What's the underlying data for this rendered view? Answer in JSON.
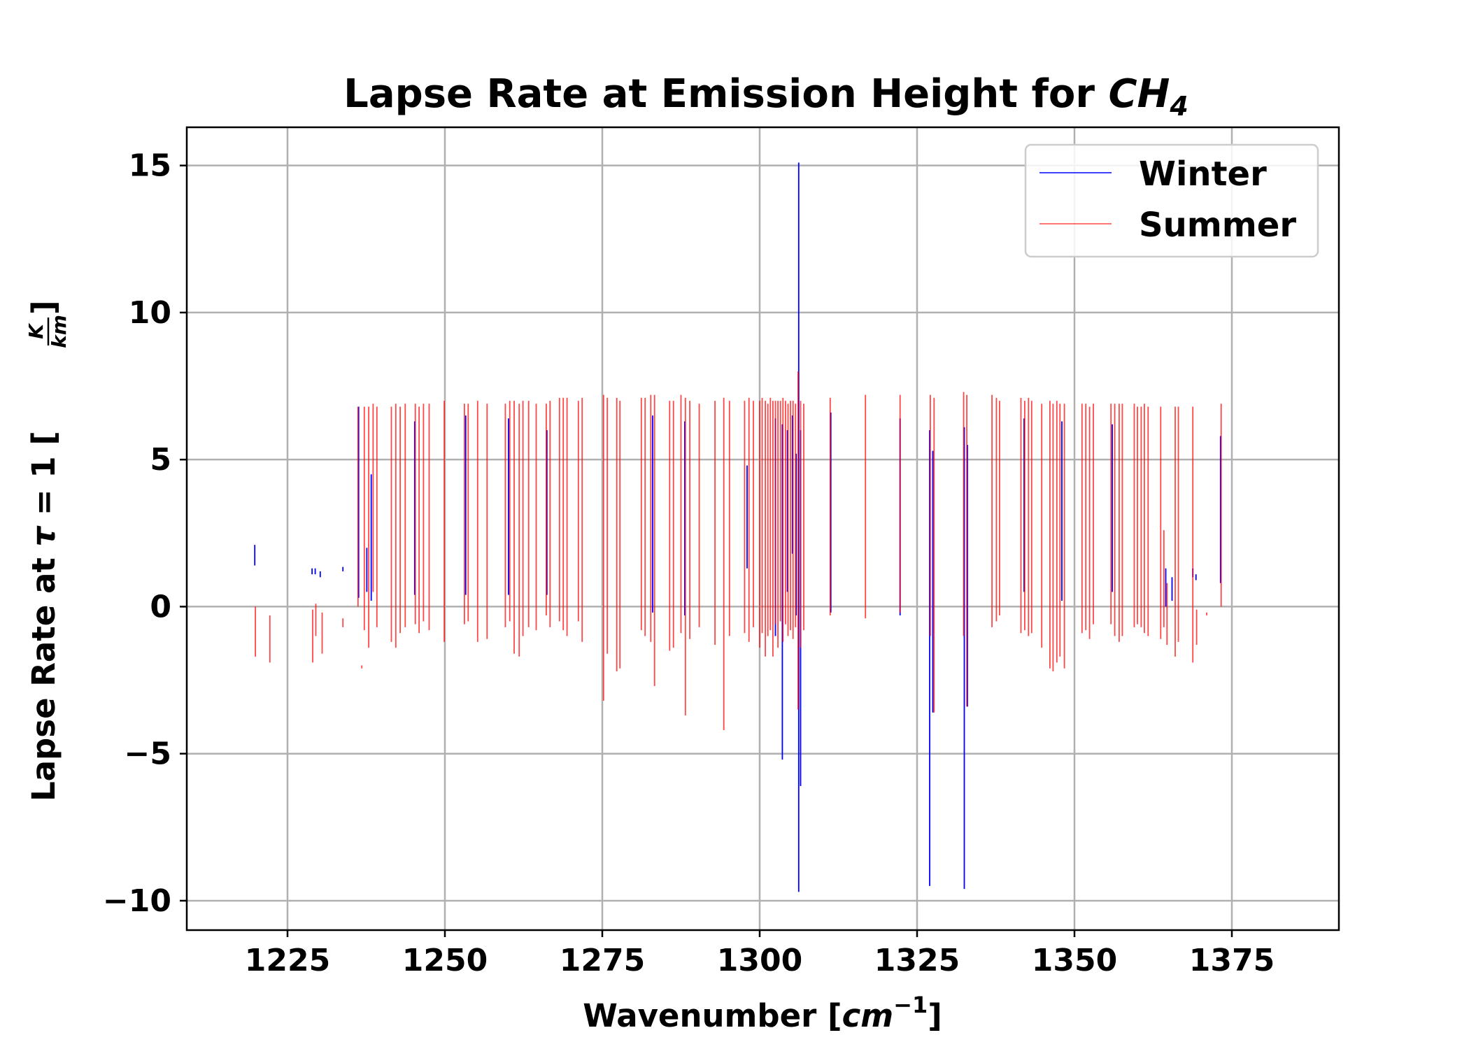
{
  "chart_data": {
    "type": "line",
    "title": "Lapse Rate at Emission Height for ",
    "title_species": "CH",
    "title_species_subscript": "4",
    "xlabel": "Wavenumber [",
    "xlabel_unit": "cm",
    "xlabel_exponent": "−1",
    "xlabel_close": "]",
    "ylabel": "Lapse Rate at ",
    "ylabel_symbol": "τ",
    "ylabel_eq": " = 1 [",
    "ylabel_unit_num": "K",
    "ylabel_unit_den": "km",
    "ylabel_close": "]",
    "xlim": [
      1209,
      1392
    ],
    "ylim": [
      -11,
      16.3
    ],
    "x_ticks": [
      1225,
      1250,
      1275,
      1300,
      1325,
      1350,
      1375
    ],
    "x_tick_labels": [
      "1225",
      "1250",
      "1275",
      "1300",
      "1325",
      "1350",
      "1375"
    ],
    "y_ticks": [
      -10,
      -5,
      0,
      5,
      10,
      15
    ],
    "y_tick_labels": [
      "−10",
      "−5",
      "0",
      "5",
      "10",
      "15"
    ],
    "grid": true,
    "legend_position": "upper right",
    "series": [
      {
        "name": "Winter",
        "color": "#0000ff",
        "segments": [
          [
            1219.8,
            1.4,
            2.1
          ],
          [
            1228.9,
            1.1,
            1.3
          ],
          [
            1229.4,
            1.1,
            1.3
          ],
          [
            1230.2,
            1.0,
            1.2
          ],
          [
            1233.8,
            1.2,
            1.35
          ],
          [
            1236.3,
            0.3,
            6.8
          ],
          [
            1237.6,
            0.5,
            2.0
          ],
          [
            1238.3,
            0.2,
            4.5
          ],
          [
            1245.2,
            0.4,
            6.3
          ],
          [
            1253.3,
            0.4,
            6.5
          ],
          [
            1260.1,
            0.4,
            6.4
          ],
          [
            1266.2,
            0.4,
            6.0
          ],
          [
            1283.0,
            -0.2,
            6.5
          ],
          [
            1288.1,
            -0.3,
            6.3
          ],
          [
            1298.0,
            1.3,
            4.8
          ],
          [
            1302.5,
            -1.0,
            6.4
          ],
          [
            1303.6,
            -5.2,
            6.2
          ],
          [
            1304.4,
            0.5,
            6.0
          ],
          [
            1305.2,
            1.8,
            6.5
          ],
          [
            1305.8,
            -0.3,
            5.2
          ],
          [
            1306.2,
            -9.7,
            15.1
          ],
          [
            1306.5,
            -6.1,
            6.0
          ],
          [
            1311.3,
            -0.2,
            6.6
          ],
          [
            1322.3,
            -0.3,
            6.4
          ],
          [
            1327.0,
            -9.5,
            6.0
          ],
          [
            1327.5,
            -3.6,
            5.3
          ],
          [
            1332.5,
            -9.6,
            6.1
          ],
          [
            1333.0,
            -3.4,
            5.5
          ],
          [
            1342.0,
            0.5,
            6.4
          ],
          [
            1348.0,
            0.2,
            6.3
          ],
          [
            1356.0,
            0.5,
            6.2
          ],
          [
            1364.5,
            0.0,
            1.3
          ],
          [
            1365.5,
            0.2,
            1.0
          ],
          [
            1368.8,
            1.0,
            1.3
          ],
          [
            1369.3,
            0.9,
            1.1
          ],
          [
            1373.2,
            0.8,
            5.8
          ]
        ]
      },
      {
        "name": "Summer",
        "color": "#ff0000",
        "segments": [
          [
            1219.9,
            -1.7,
            0.0
          ],
          [
            1222.2,
            -1.9,
            -0.3
          ],
          [
            1229.0,
            -1.9,
            -0.1
          ],
          [
            1229.5,
            -1.0,
            0.1
          ],
          [
            1230.5,
            -1.6,
            -0.2
          ],
          [
            1233.8,
            -0.7,
            -0.4
          ],
          [
            1236.8,
            -2.1,
            -2.0
          ],
          [
            1236.2,
            0.0,
            6.8
          ],
          [
            1237.2,
            -0.8,
            6.8
          ],
          [
            1237.9,
            -1.4,
            6.8
          ],
          [
            1238.6,
            0.5,
            6.9
          ],
          [
            1239.2,
            -0.7,
            6.8
          ],
          [
            1241.5,
            -1.2,
            6.8
          ],
          [
            1242.2,
            -1.4,
            6.9
          ],
          [
            1242.9,
            -0.9,
            6.8
          ],
          [
            1243.7,
            -0.7,
            6.9
          ],
          [
            1245.3,
            -0.6,
            6.9
          ],
          [
            1245.9,
            -0.9,
            6.8
          ],
          [
            1246.6,
            -0.5,
            6.9
          ],
          [
            1247.5,
            -0.8,
            6.9
          ],
          [
            1249.9,
            -1.2,
            7.0
          ],
          [
            1253.1,
            -0.6,
            6.9
          ],
          [
            1253.7,
            -0.5,
            6.9
          ],
          [
            1255.2,
            -1.2,
            7.0
          ],
          [
            1256.7,
            -1.1,
            6.9
          ],
          [
            1259.6,
            -0.7,
            6.9
          ],
          [
            1260.3,
            -0.5,
            7.0
          ],
          [
            1261.0,
            -1.6,
            7.0
          ],
          [
            1261.8,
            -1.7,
            6.9
          ],
          [
            1262.4,
            -1.0,
            7.0
          ],
          [
            1263.3,
            -0.7,
            7.0
          ],
          [
            1264.5,
            -0.8,
            6.9
          ],
          [
            1266.1,
            -0.3,
            6.9
          ],
          [
            1266.7,
            -0.7,
            7.0
          ],
          [
            1268.2,
            -0.5,
            7.1
          ],
          [
            1268.8,
            -0.8,
            7.1
          ],
          [
            1269.4,
            -1.0,
            7.1
          ],
          [
            1271.2,
            -0.5,
            7.0
          ],
          [
            1271.8,
            -1.2,
            7.1
          ],
          [
            1275.2,
            -3.2,
            7.2
          ],
          [
            1275.8,
            -1.6,
            7.1
          ],
          [
            1277.3,
            -2.2,
            7.1
          ],
          [
            1277.8,
            -2.1,
            7.0
          ],
          [
            1281.2,
            -0.8,
            7.1
          ],
          [
            1281.8,
            -1.0,
            7.1
          ],
          [
            1282.7,
            -1.2,
            7.2
          ],
          [
            1283.3,
            -2.7,
            7.2
          ],
          [
            1285.7,
            -1.5,
            7.0
          ],
          [
            1286.3,
            -1.4,
            7.0
          ],
          [
            1287.5,
            -0.9,
            7.2
          ],
          [
            1288.2,
            -3.7,
            7.1
          ],
          [
            1288.9,
            -1.1,
            7.0
          ],
          [
            1290.4,
            -0.7,
            6.9
          ],
          [
            1292.9,
            -1.3,
            7.0
          ],
          [
            1294.3,
            -4.2,
            7.1
          ],
          [
            1295.2,
            -1.0,
            7.0
          ],
          [
            1297.6,
            -0.9,
            7.0
          ],
          [
            1298.3,
            -1.2,
            7.1
          ],
          [
            1299.0,
            -0.7,
            7.0
          ],
          [
            1300.0,
            -1.4,
            7.0
          ],
          [
            1300.4,
            -0.9,
            7.1
          ],
          [
            1300.9,
            -1.7,
            7.0
          ],
          [
            1301.3,
            -1.0,
            6.9
          ],
          [
            1301.7,
            -0.8,
            7.1
          ],
          [
            1302.1,
            -1.7,
            7.0
          ],
          [
            1302.5,
            -0.6,
            7.0
          ],
          [
            1302.9,
            -1.4,
            7.0
          ],
          [
            1303.3,
            -0.5,
            7.0
          ],
          [
            1303.7,
            -1.2,
            7.1
          ],
          [
            1304.1,
            -0.6,
            7.0
          ],
          [
            1304.5,
            -1.0,
            6.9
          ],
          [
            1304.9,
            -0.8,
            7.0
          ],
          [
            1305.3,
            -1.1,
            7.0
          ],
          [
            1305.7,
            -0.7,
            6.9
          ],
          [
            1306.1,
            -3.5,
            8.0
          ],
          [
            1306.5,
            -1.4,
            7.0
          ],
          [
            1307.0,
            -0.8,
            6.9
          ],
          [
            1311.2,
            -0.3,
            7.1
          ],
          [
            1316.8,
            -0.4,
            7.2
          ],
          [
            1322.3,
            -0.2,
            7.2
          ],
          [
            1327.1,
            -1.0,
            7.2
          ],
          [
            1327.7,
            -3.6,
            7.1
          ],
          [
            1332.4,
            -1.0,
            7.3
          ],
          [
            1332.9,
            -3.4,
            7.2
          ],
          [
            1336.9,
            -0.7,
            7.2
          ],
          [
            1337.6,
            -0.5,
            7.1
          ],
          [
            1338.1,
            -0.3,
            7.0
          ],
          [
            1341.5,
            -0.9,
            7.1
          ],
          [
            1342.1,
            -0.8,
            7.0
          ],
          [
            1342.7,
            -1.0,
            7.1
          ],
          [
            1343.2,
            -0.9,
            7.0
          ],
          [
            1344.8,
            -1.4,
            6.9
          ],
          [
            1346.1,
            -2.1,
            7.0
          ],
          [
            1346.6,
            -2.2,
            6.9
          ],
          [
            1347.2,
            -1.9,
            7.0
          ],
          [
            1347.7,
            -1.7,
            6.9
          ],
          [
            1348.4,
            -2.1,
            6.9
          ],
          [
            1351.2,
            -0.9,
            6.9
          ],
          [
            1351.8,
            -0.8,
            6.9
          ],
          [
            1352.4,
            -1.1,
            6.8
          ],
          [
            1353.0,
            -0.6,
            6.9
          ],
          [
            1355.8,
            -0.6,
            6.9
          ],
          [
            1356.4,
            -1.0,
            6.9
          ],
          [
            1357.1,
            -1.2,
            6.9
          ],
          [
            1357.6,
            -1.0,
            6.9
          ],
          [
            1359.5,
            -0.7,
            6.9
          ],
          [
            1360.0,
            -0.6,
            6.8
          ],
          [
            1360.6,
            -0.7,
            6.8
          ],
          [
            1361.1,
            -0.9,
            6.9
          ],
          [
            1361.7,
            -1.0,
            6.8
          ],
          [
            1363.7,
            -1.1,
            6.8
          ],
          [
            1364.2,
            -0.7,
            2.6
          ],
          [
            1364.7,
            -1.3,
            0.8
          ],
          [
            1366.0,
            -1.7,
            6.8
          ],
          [
            1366.5,
            -1.2,
            6.8
          ],
          [
            1368.8,
            -1.9,
            6.8
          ],
          [
            1369.4,
            -1.3,
            -0.1
          ],
          [
            1371.0,
            -0.3,
            -0.2
          ],
          [
            1373.3,
            0.0,
            6.9
          ]
        ]
      }
    ]
  }
}
